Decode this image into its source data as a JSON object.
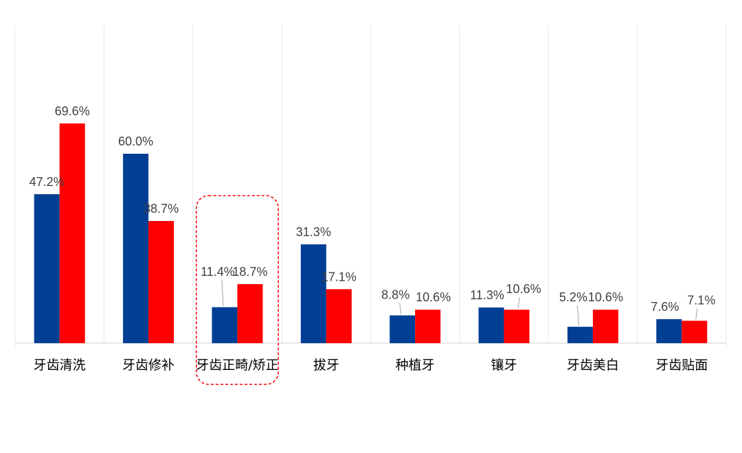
{
  "chart_data": {
    "type": "bar",
    "categories": [
      "牙齿清洗",
      "牙齿修补",
      "牙齿正畸/矫正",
      "拔牙",
      "种植牙",
      "镶牙",
      "牙齿美白",
      "牙齿贴面"
    ],
    "series": [
      {
        "color": "#003F94",
        "values": [
          47.2,
          60.0,
          11.4,
          31.3,
          8.8,
          11.3,
          5.2,
          7.6
        ],
        "labels": [
          "47.2%",
          "60.0%",
          "11.4%",
          "31.3%",
          "8.8%",
          "11.3%",
          "5.2%",
          "7.6%"
        ]
      },
      {
        "color": "#FF0000",
        "values": [
          69.6,
          38.7,
          18.7,
          17.1,
          10.6,
          10.6,
          10.6,
          7.1
        ],
        "labels": [
          "69.6%",
          "38.7%",
          "18.7%",
          "17.1%",
          "10.6%",
          "10.6%",
          "10.6%",
          "7.1%"
        ]
      }
    ],
    "ylim": [
      0,
      100
    ],
    "grid": "vertical",
    "legend": "none",
    "highlight": {
      "category_index": 2,
      "style": "dashed-rounded-box",
      "color": "#FF0000"
    }
  }
}
